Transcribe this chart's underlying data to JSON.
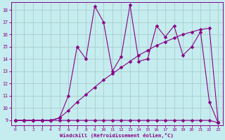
{
  "xlabel": "Windchill (Refroidissement éolien,°C)",
  "background_color": "#c5ecee",
  "line_color": "#880088",
  "grid_color": "#aacccc",
  "xlim": [
    -0.5,
    23.5
  ],
  "ylim": [
    8.6,
    18.6
  ],
  "xticks": [
    0,
    1,
    2,
    3,
    4,
    5,
    6,
    7,
    8,
    9,
    10,
    11,
    12,
    13,
    14,
    15,
    16,
    17,
    18,
    19,
    20,
    21,
    22,
    23
  ],
  "yticks": [
    9,
    10,
    11,
    12,
    13,
    14,
    15,
    16,
    17,
    18
  ],
  "line1_x": [
    0,
    1,
    2,
    3,
    4,
    5,
    6,
    7,
    8,
    9,
    10,
    11,
    12,
    13,
    14,
    15,
    16,
    17,
    18,
    19,
    20,
    21,
    22,
    23
  ],
  "line1_y": [
    9,
    9,
    9,
    9,
    9,
    9,
    9,
    9,
    9,
    9,
    9,
    9,
    9,
    9,
    9,
    9,
    9,
    9,
    9,
    9,
    9,
    9,
    9,
    8.8
  ],
  "line2_x": [
    0,
    1,
    2,
    3,
    4,
    5,
    6,
    7,
    8,
    9,
    10,
    11,
    12,
    13,
    14,
    15,
    16,
    17,
    18,
    19,
    20,
    21,
    22,
    23
  ],
  "line2_y": [
    9,
    9,
    9,
    9,
    9,
    9.2,
    9.8,
    10.5,
    11.1,
    11.7,
    12.3,
    12.8,
    13.3,
    13.8,
    14.3,
    14.7,
    15.1,
    15.4,
    15.7,
    16.0,
    16.2,
    16.4,
    16.5,
    8.8
  ],
  "line3_x": [
    0,
    1,
    2,
    3,
    4,
    5,
    6,
    7,
    8,
    9,
    10,
    11,
    12,
    13,
    14,
    15,
    16,
    17,
    18,
    19,
    20,
    21,
    22,
    23
  ],
  "line3_y": [
    9,
    9,
    9,
    9,
    9,
    9.2,
    11.0,
    15.0,
    14.0,
    18.3,
    17.0,
    13.0,
    14.2,
    18.4,
    13.8,
    14.0,
    16.7,
    15.8,
    16.7,
    14.3,
    15.0,
    16.2,
    10.5,
    8.8
  ],
  "marker_size": 2.5,
  "line_width": 0.8
}
